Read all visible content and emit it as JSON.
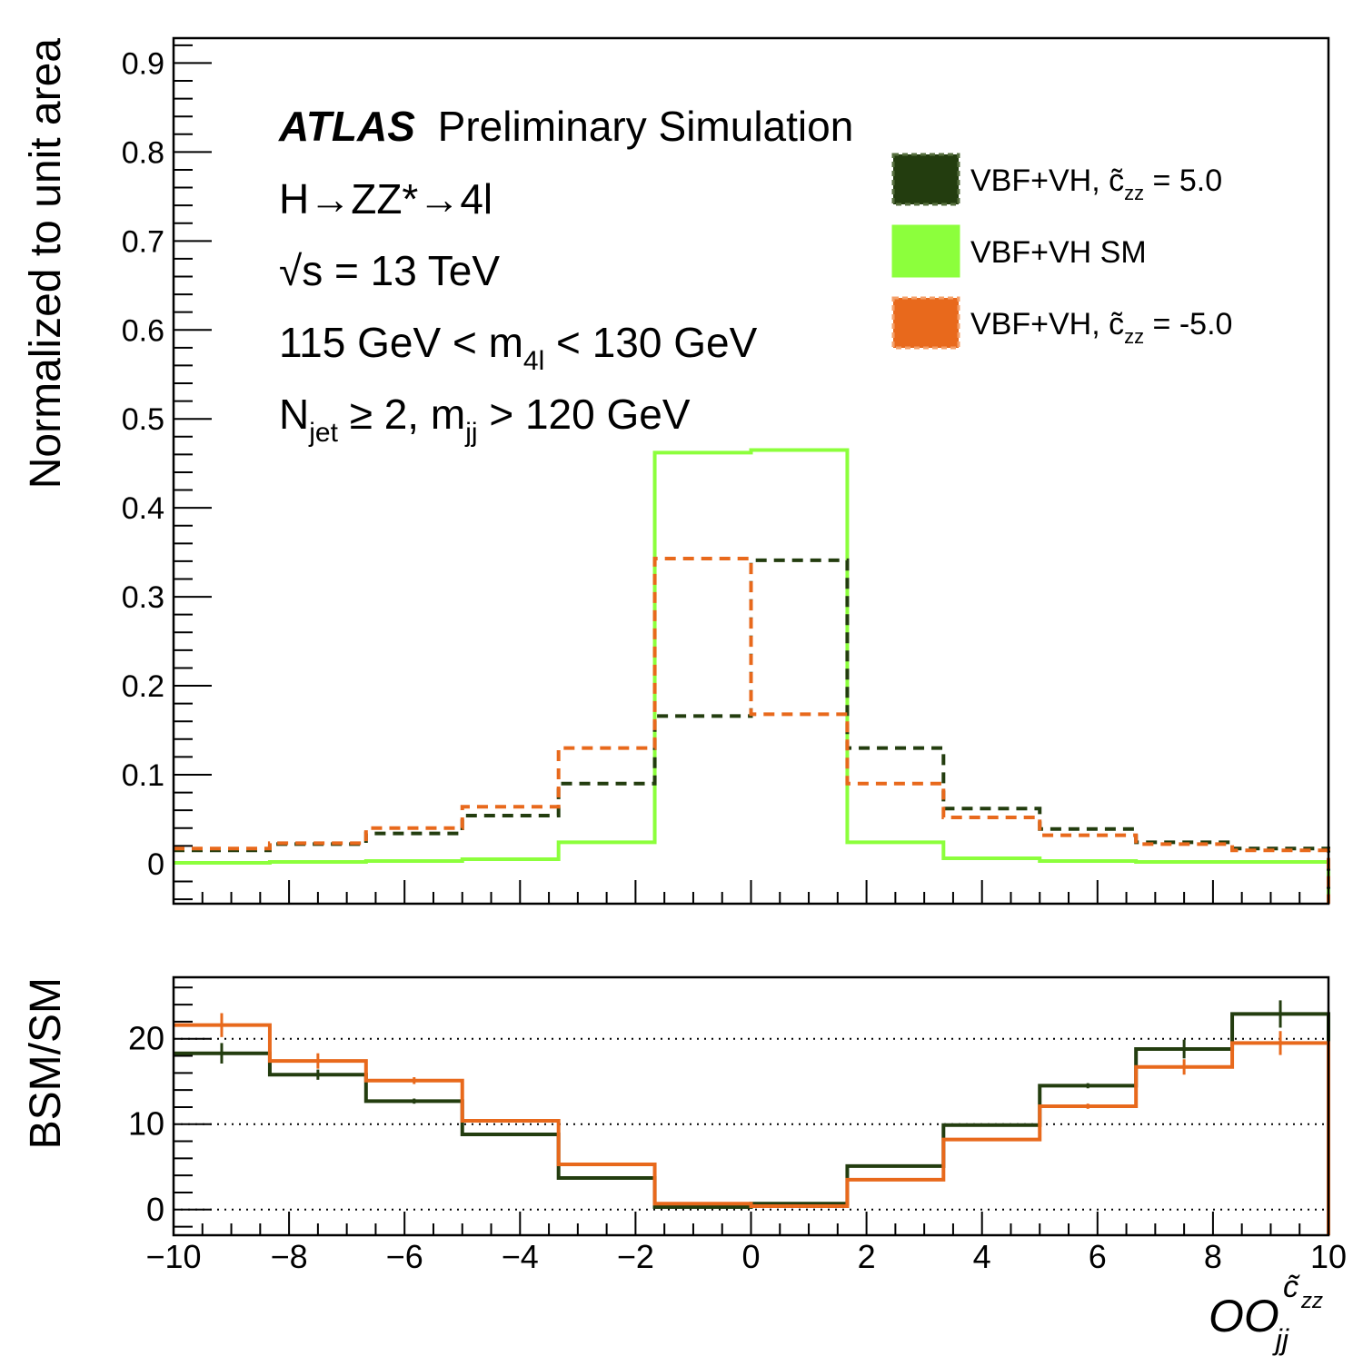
{
  "colors": {
    "bsm_plus": "#233d0f",
    "sm": "#8cff3c",
    "bsm_minus": "#e8691c"
  },
  "annotations": {
    "atlas": "ATLAS",
    "atlas_suffix": "Preliminary Simulation",
    "lines": [
      [
        {
          "t": "H→ZZ*→4l"
        }
      ],
      [
        {
          "t": "√s = 13 TeV"
        }
      ],
      [
        {
          "t": "115 GeV < m"
        },
        {
          "t": "4l",
          "sub": true
        },
        {
          "t": " < 130 GeV"
        }
      ],
      [
        {
          "t": "N"
        },
        {
          "t": "jet",
          "sub": true
        },
        {
          "t": " ≥ 2, m"
        },
        {
          "t": "jj",
          "sub": true
        },
        {
          "t": " > 120 GeV"
        }
      ]
    ]
  },
  "legend": [
    {
      "name": "VBF+VH, c̃",
      "sub": "zz",
      "after": " = 5.0",
      "series": "bsm_plus",
      "style": "dashed"
    },
    {
      "name": "VBF+VH SM",
      "sub": "",
      "after": "",
      "series": "sm",
      "style": "solid"
    },
    {
      "name": "VBF+VH, c̃",
      "sub": "zz",
      "after": " = -5.0",
      "series": "bsm_minus",
      "style": "dashed"
    }
  ],
  "chart_data": [
    {
      "type": "histogram-step",
      "ylabel": "Normalized to unit area",
      "xlim": [
        -10,
        10
      ],
      "ylim": [
        -0.045,
        0.928
      ],
      "yticks": [
        "0",
        "0.1",
        "0.2",
        "0.3",
        "0.4",
        "0.5",
        "0.6",
        "0.7",
        "0.8",
        "0.9"
      ],
      "bin_edges": [
        -10,
        -8.333,
        -6.667,
        -5,
        -3.333,
        -1.667,
        0,
        1.667,
        3.333,
        5,
        6.667,
        8.333,
        10
      ],
      "series": [
        {
          "key": "sm",
          "values": [
            0.001,
            0.002,
            0.003,
            0.005,
            0.024,
            0.462,
            0.465,
            0.024,
            0.006,
            0.003,
            0.002,
            0.002
          ]
        },
        {
          "key": "bsm_plus",
          "values": [
            0.015,
            0.022,
            0.034,
            0.054,
            0.09,
            0.166,
            0.341,
            0.13,
            0.062,
            0.039,
            0.024,
            0.017
          ]
        },
        {
          "key": "bsm_minus",
          "values": [
            0.017,
            0.023,
            0.04,
            0.064,
            0.13,
            0.343,
            0.168,
            0.09,
            0.052,
            0.032,
            0.022,
            0.015
          ]
        }
      ]
    },
    {
      "type": "histogram-step",
      "ylabel": "BSM/SM",
      "xlabel_main": "OO",
      "xlabel_sub": "jj",
      "xlabel_sup": "c̃",
      "xlabel_sup_sub": "zz",
      "xlim": [
        -10,
        10
      ],
      "ylim": [
        -3,
        27.2
      ],
      "yticks": [
        "0",
        "10",
        "20"
      ],
      "xticks": [
        "−10",
        "−8",
        "−6",
        "−4",
        "−2",
        "0",
        "2",
        "4",
        "6",
        "8",
        "10"
      ],
      "reference_lines": [
        0,
        10,
        20
      ],
      "series": [
        {
          "key": "bsm_plus",
          "values": [
            18.3,
            15.8,
            12.7,
            8.8,
            3.7,
            0.3,
            0.7,
            5.1,
            9.9,
            14.5,
            18.8,
            22.9
          ],
          "errors": [
            1.2,
            0.6,
            0.3,
            0.1,
            0.05,
            0.02,
            0.02,
            0.05,
            0.1,
            0.3,
            1.1,
            1.6
          ]
        },
        {
          "key": "bsm_minus",
          "values": [
            21.6,
            17.4,
            15.1,
            10.4,
            5.3,
            0.7,
            0.4,
            3.5,
            8.2,
            12.1,
            16.7,
            19.5
          ],
          "errors": [
            1.4,
            0.9,
            0.4,
            0.1,
            0.05,
            0.02,
            0.02,
            0.05,
            0.1,
            0.3,
            0.9,
            1.4
          ]
        }
      ]
    }
  ]
}
